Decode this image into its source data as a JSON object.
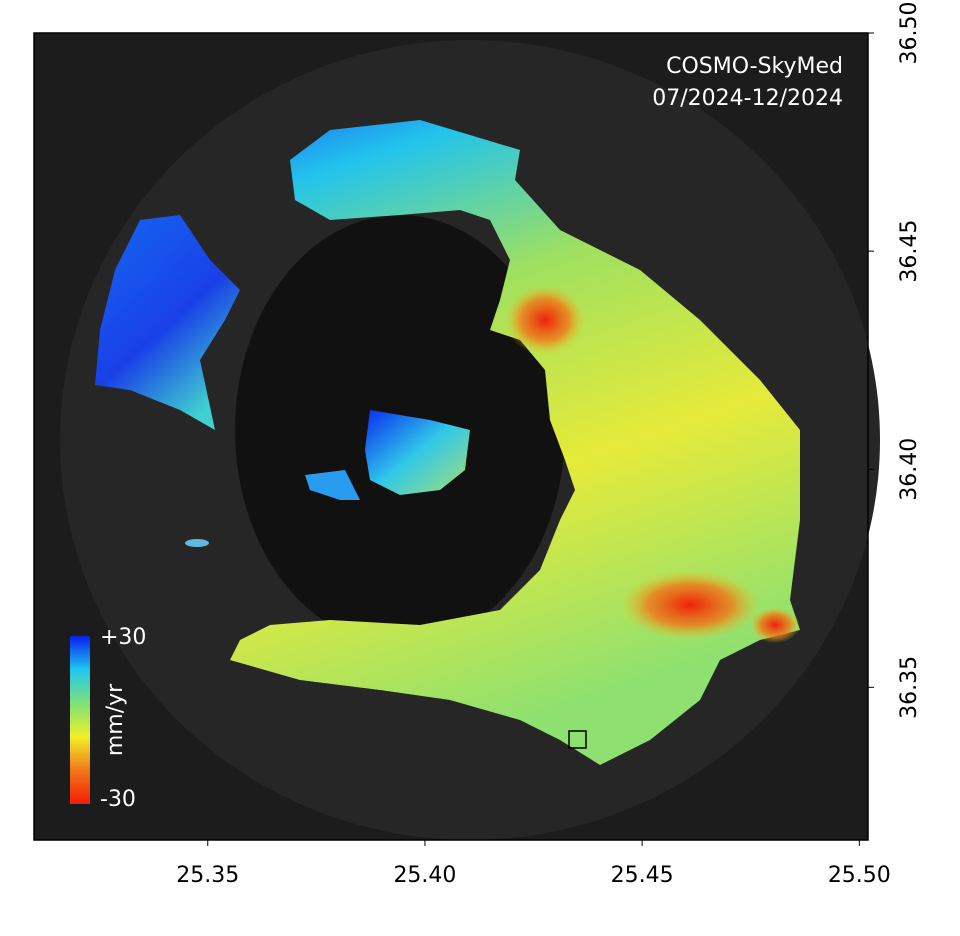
{
  "map": {
    "annotation": [
      "COSMO-SkyMed",
      "07/2024-12/2024"
    ],
    "xlim": [
      25.31,
      25.502
    ],
    "ylim": [
      36.315,
      36.5
    ],
    "xticks": [
      25.35,
      {
        "value": 25.4,
        "label": "25.40"
      },
      25.45,
      {
        "value": 25.5,
        "label": "25.50"
      }
    ],
    "yticks": [
      36.35,
      {
        "value": 36.4,
        "label": "36.40"
      },
      36.45,
      {
        "value": 36.5,
        "label": "36.50"
      }
    ],
    "colorbar": {
      "label": "mm/yr",
      "range": [
        {
          "value": 30,
          "label": "+30"
        },
        -30
      ],
      "colors": [
        "#0a1cf0",
        "#1ec8f0",
        "#7ee07a",
        "#f0f028",
        "#f07818",
        "#f01e0a"
      ]
    }
  }
}
